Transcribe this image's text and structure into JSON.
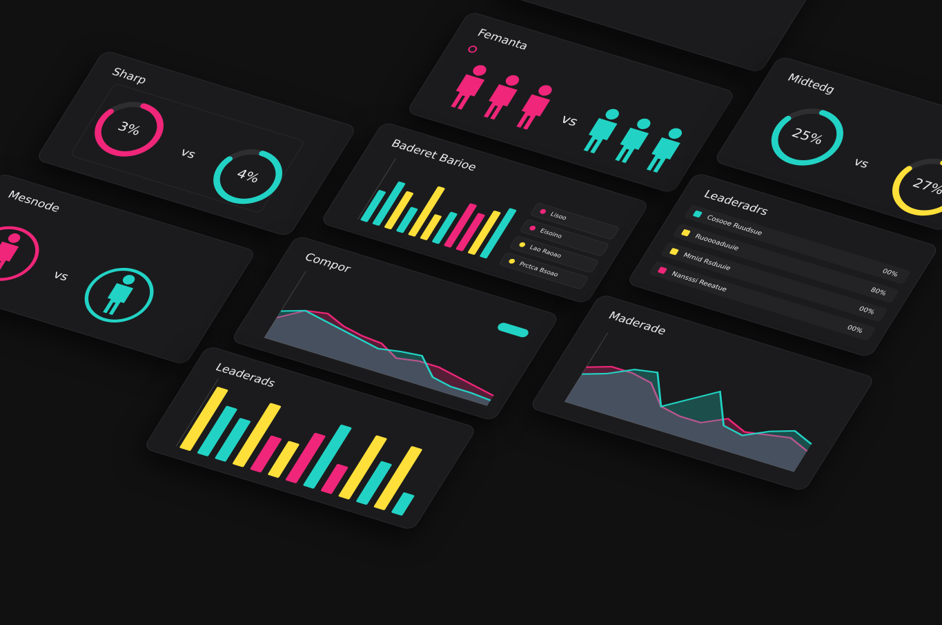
{
  "sharp": {
    "title": "Sharp",
    "vs": "vs",
    "rings": [
      {
        "label": "3%",
        "color": "#f0267a"
      },
      {
        "label": "4%",
        "color": "#22d3c5"
      }
    ]
  },
  "femanta": {
    "title": "Femanta",
    "vs": "vs",
    "groups": [
      {
        "count": 3,
        "color": "#f0267a"
      },
      {
        "count": 3,
        "color": "#22d3c5"
      }
    ]
  },
  "midtedg": {
    "title": "Midtedg",
    "vs": "vs",
    "rings": [
      {
        "label": "25%",
        "color": "#22d3c5"
      },
      {
        "label": "27%",
        "color": "#ffe03a"
      }
    ]
  },
  "mesnode": {
    "title": "Mesnode",
    "vs": "vs",
    "groups": [
      {
        "count": 1,
        "color": "#f0267a"
      },
      {
        "count": 1,
        "color": "#22d3c5"
      }
    ]
  },
  "baderet": {
    "title": "Baderet Barioe",
    "ylim": [
      0,
      10
    ],
    "values": [
      5,
      7,
      6,
      4,
      8,
      4,
      5,
      7,
      6,
      7,
      8
    ],
    "colors": [
      "#22d3c5",
      "#22d3c5",
      "#ffe03a",
      "#22d3c5",
      "#ffe03a",
      "#ffe03a",
      "#22d3c5",
      "#f0267a",
      "#f0267a",
      "#ffe03a",
      "#22d3c5"
    ],
    "legend": [
      {
        "label": "Lisoo",
        "color": "#f0267a"
      },
      {
        "label": "Eisoino",
        "color": "#f0267a"
      },
      {
        "label": "Lao Raoao",
        "color": "#ffe03a"
      },
      {
        "label": "Prctca Bsoao",
        "color": "#ffe03a"
      }
    ]
  },
  "leaderadrs": {
    "title": "Leaderadrs",
    "rows": [
      {
        "label": "Cosooe Ruudsue",
        "value": "00%",
        "color": "#22d3c5"
      },
      {
        "label": "Ruoooaduuie",
        "value": "80%",
        "color": "#ffe03a"
      },
      {
        "label": "Mmid Rsduuie",
        "value": "00%",
        "color": "#ffe03a"
      },
      {
        "label": "Nansssi Reeatue",
        "value": "00%",
        "color": "#f0267a"
      }
    ]
  },
  "compor": {
    "title": "Compor",
    "ylim": [
      0,
      10
    ],
    "series": [
      {
        "color": "#f0267a",
        "values": [
          3,
          5,
          5.5,
          4.5,
          4,
          3.8,
          2.5,
          3,
          3,
          2.5,
          2,
          1.5
        ]
      },
      {
        "color": "#22d3c5",
        "values": [
          4,
          5,
          4.5,
          4,
          3.5,
          3,
          3.5,
          3.8,
          1.5,
          1,
          1,
          0.8
        ]
      }
    ]
  },
  "leaderads": {
    "title": "Leaderads",
    "ylim": [
      0,
      10
    ],
    "values": [
      9,
      7,
      6,
      9,
      5,
      5,
      7,
      9,
      4,
      9,
      6,
      9,
      3
    ],
    "colors": [
      "#ffe03a",
      "#22d3c5",
      "#22d3c5",
      "#ffe03a",
      "#f0267a",
      "#ffe03a",
      "#f0267a",
      "#22d3c5",
      "#f0267a",
      "#ffe03a",
      "#22d3c5",
      "#ffe03a",
      "#22d3c5"
    ]
  },
  "maderade": {
    "title": "Maderade",
    "ylim": [
      0,
      10
    ],
    "series": [
      {
        "color": "#f0267a",
        "values": [
          5,
          6,
          6,
          5.5,
          3,
          2.5,
          2.5,
          4,
          3,
          3.5,
          4,
          3
        ]
      },
      {
        "color": "#22d3c5",
        "values": [
          4,
          5,
          6.5,
          7,
          3,
          5,
          7,
          3,
          2.5,
          4,
          5,
          4
        ]
      }
    ]
  }
}
